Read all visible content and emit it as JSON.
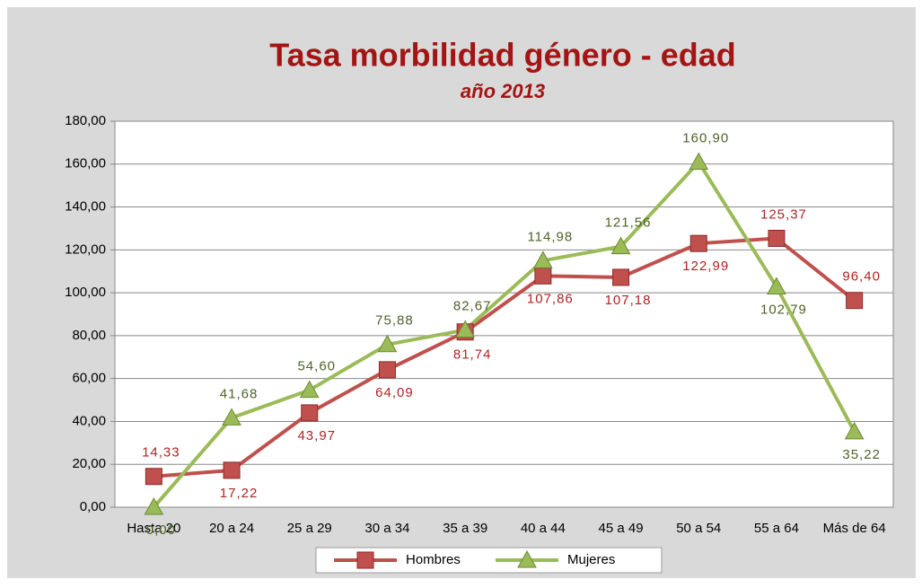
{
  "chart_data": {
    "type": "line",
    "title": "Tasa morbilidad género - edad",
    "subtitle": "año 2013",
    "categories": [
      "Hasta 20",
      "20 a 24",
      "25 a 29",
      "30 a 34",
      "35 a 39",
      "40 a 44",
      "45 a 49",
      "50 a 54",
      "55 a 64",
      "Más de 64"
    ],
    "series": [
      {
        "name": "Hombres",
        "color": "#c0504d",
        "marker": "square",
        "values": [
          14.33,
          17.22,
          43.97,
          64.09,
          81.74,
          107.86,
          107.18,
          122.99,
          125.37,
          96.4
        ],
        "value_labels": [
          "14,33",
          "17,22",
          "43,97",
          "64,09",
          "81,74",
          "107,86",
          "107,18",
          "122,99",
          "125,37",
          "96,40"
        ]
      },
      {
        "name": "Mujeres",
        "color": "#9bbb59",
        "marker": "triangle",
        "values": [
          0.0,
          41.68,
          54.6,
          75.88,
          82.67,
          114.98,
          121.56,
          160.9,
          102.79,
          35.22
        ],
        "value_labels": [
          "0,00",
          "41,68",
          "54,60",
          "75,88",
          "82,67",
          "114,98",
          "121,56",
          "160,90",
          "102,79",
          "35,22"
        ]
      }
    ],
    "ylim": [
      0,
      180
    ],
    "yticks": [
      {
        "value": 0,
        "label": "0,00"
      },
      {
        "value": 20,
        "label": "20,00"
      },
      {
        "value": 40,
        "label": "40,00"
      },
      {
        "value": 60,
        "label": "60,00"
      },
      {
        "value": 80,
        "label": "80,00"
      },
      {
        "value": 100,
        "label": "100,00"
      },
      {
        "value": 120,
        "label": "120,00"
      },
      {
        "value": 140,
        "label": "140,00"
      },
      {
        "value": 160,
        "label": "160,00"
      },
      {
        "value": 180,
        "label": "180,00"
      }
    ],
    "grid": true,
    "legend": "bottom"
  }
}
